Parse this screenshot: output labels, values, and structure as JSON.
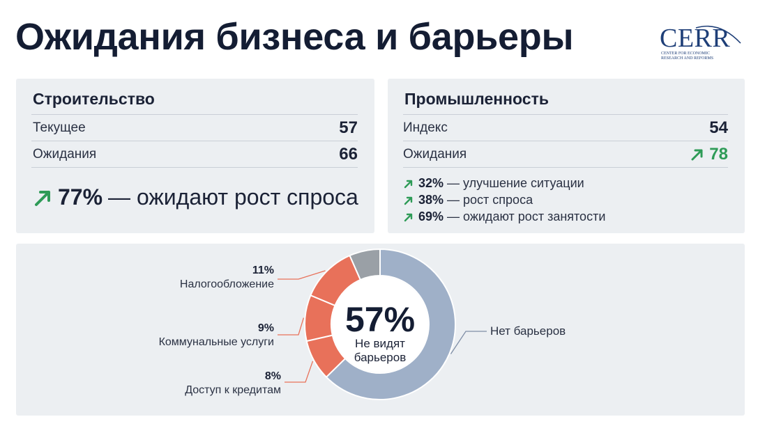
{
  "title": "Ожидания бизнеса и барьеры",
  "logo": {
    "word": "CERR",
    "subtitle_line1": "Center for Economic",
    "subtitle_line2": "Research and Reforms"
  },
  "construction": {
    "heading": "Строительство",
    "rows": [
      {
        "label": "Текущее",
        "value": "57"
      },
      {
        "label": "Ожидания",
        "value": "66"
      }
    ],
    "highlight_pct": "77%",
    "highlight_text": "— ожидают рост спроса"
  },
  "industry": {
    "heading": "Промышленность",
    "rows": [
      {
        "label": "Индекс",
        "value": "54"
      },
      {
        "label": "Ожидания",
        "value": "78"
      }
    ],
    "bullets": [
      {
        "pct": "32%",
        "text": "— улучшение ситуации"
      },
      {
        "pct": "38%",
        "text": "— рост спроса"
      },
      {
        "pct": "69%",
        "text": "— ожидают рост занятости"
      }
    ]
  },
  "chart_data": {
    "type": "pie",
    "variant": "donut",
    "center_value": "57%",
    "center_label_line1": "Не видят",
    "center_label_line2": "барьеров",
    "slices": [
      {
        "label": "Нет барьеров",
        "value": 57,
        "color": "#9fb0c8"
      },
      {
        "label": "Доступ к кредитам",
        "value": 8,
        "color": "#e8715a"
      },
      {
        "label": "Коммунальные услуги",
        "value": 9,
        "color": "#e8715a"
      },
      {
        "label": "Налогообложение",
        "value": 11,
        "color": "#e8715a"
      },
      {
        "label": "",
        "value": 6,
        "color": "#9aa0a6"
      }
    ],
    "value_labels": {
      "taxes": "11%",
      "utilities": "9%",
      "credit": "8%"
    }
  },
  "colors": {
    "accent_green": "#2e9b57",
    "slice_grey_blue": "#9fb0c8",
    "slice_orange": "#e8715a",
    "slice_other": "#9aa0a6"
  },
  "icons": {
    "trend": "arrow-up-right-icon"
  }
}
